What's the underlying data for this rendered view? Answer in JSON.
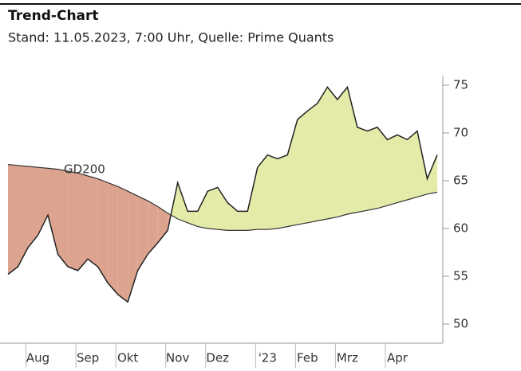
{
  "chart_data": {
    "type": "line",
    "title": "Trend-Chart",
    "subtitle": "Stand: 11.05.2023, 7:00 Uhr, Quelle: Prime Quants",
    "categories": [
      null,
      null,
      null,
      "Aug",
      null,
      null,
      null,
      null,
      "Sep",
      null,
      null,
      null,
      "Okt",
      null,
      null,
      null,
      null,
      "Nov",
      null,
      null,
      null,
      "Dez",
      null,
      null,
      null,
      null,
      "'23",
      null,
      null,
      null,
      "Feb",
      null,
      null,
      null,
      "Mrz",
      null,
      null,
      null,
      null,
      "Apr",
      null,
      null,
      null,
      null
    ],
    "series": [
      {
        "color": "#222222",
        "values": [
          55.2,
          56.0,
          58.0,
          59.3,
          61.4,
          57.3,
          56.0,
          55.6,
          56.8,
          56.0,
          54.3,
          53.1,
          52.3,
          55.6,
          57.3,
          58.5,
          59.8,
          64.8,
          61.8,
          61.8,
          63.9,
          64.3,
          62.7,
          61.8,
          61.8,
          66.4,
          67.7,
          67.3,
          67.7,
          71.4,
          72.3,
          73.1,
          74.8,
          73.5,
          74.8,
          70.6,
          70.2,
          70.6,
          69.3,
          69.8,
          69.3,
          70.2,
          65.2,
          67.7
        ]
      },
      {
        "name": "GD200",
        "color": "#333333",
        "values": [
          66.7,
          66.6,
          66.5,
          66.4,
          66.3,
          66.2,
          66.0,
          65.8,
          65.5,
          65.2,
          64.8,
          64.4,
          63.9,
          63.4,
          62.9,
          62.3,
          61.6,
          61.0,
          60.6,
          60.2,
          60.0,
          59.9,
          59.8,
          59.8,
          59.8,
          59.9,
          59.9,
          60.0,
          60.2,
          60.4,
          60.6,
          60.8,
          61.0,
          61.2,
          61.5,
          61.7,
          61.9,
          62.1,
          62.4,
          62.7,
          63.0,
          63.3,
          63.6,
          63.8
        ]
      }
    ],
    "fill_above_color": "#e4eaa8",
    "fill_below_color": "#dca48f",
    "ylim": [
      48,
      76
    ],
    "yticks": [
      50,
      55,
      60,
      65,
      70,
      75
    ],
    "y_axis_side": "right"
  }
}
